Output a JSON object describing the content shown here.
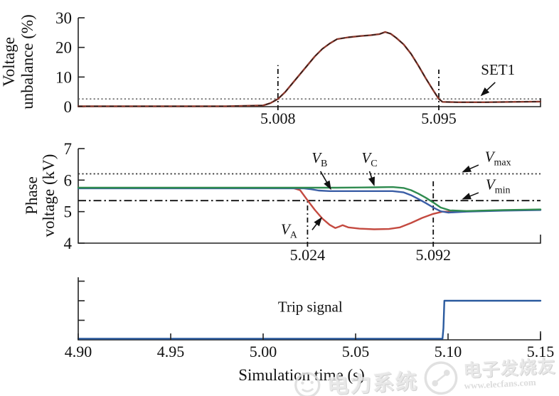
{
  "page": {
    "background": "#ffffff"
  },
  "xaxis": {
    "title": "Simulation time (s)",
    "xlim": [
      4.9,
      5.15
    ],
    "ticks": [
      {
        "v": 4.9,
        "label": "4.90"
      },
      {
        "v": 4.95,
        "label": "4.95"
      },
      {
        "v": 5.0,
        "label": "5.00"
      },
      {
        "v": 5.05,
        "label": "5.05"
      },
      {
        "v": 5.1,
        "label": "5.10"
      },
      {
        "v": 5.15,
        "label": "5.15"
      }
    ]
  },
  "watermark": {
    "left_text": "电力系统",
    "brand_text": "电子发烧友",
    "url": "www.elecfans.com"
  },
  "chart_data": [
    {
      "type": "line",
      "panel": "voltage-unbalance",
      "ylabel_lines": [
        "Voltage",
        "unbalance (%)"
      ],
      "ylim": [
        0,
        30
      ],
      "yticks": [
        {
          "v": 0,
          "label": "0"
        },
        {
          "v": 10,
          "label": "10"
        },
        {
          "v": 20,
          "label": "20"
        },
        {
          "v": 30,
          "label": "30"
        }
      ],
      "series": [
        {
          "name": "voltage-unbalance",
          "color": "#8b382c",
          "dash_overlay": true,
          "points": [
            [
              4.9,
              0.15
            ],
            [
              4.98,
              0.15
            ],
            [
              5.0,
              0.4
            ],
            [
              5.004,
              1.2
            ],
            [
              5.008,
              2.6
            ],
            [
              5.012,
              5.0
            ],
            [
              5.016,
              8.0
            ],
            [
              5.02,
              11.0
            ],
            [
              5.024,
              14.0
            ],
            [
              5.028,
              17.0
            ],
            [
              5.032,
              19.5
            ],
            [
              5.036,
              21.3
            ],
            [
              5.04,
              22.8
            ],
            [
              5.046,
              23.4
            ],
            [
              5.052,
              23.8
            ],
            [
              5.058,
              24.1
            ],
            [
              5.063,
              24.5
            ],
            [
              5.066,
              25.2
            ],
            [
              5.069,
              24.6
            ],
            [
              5.072,
              23.2
            ],
            [
              5.076,
              21.0
            ],
            [
              5.08,
              17.8
            ],
            [
              5.084,
              13.8
            ],
            [
              5.088,
              9.5
            ],
            [
              5.092,
              5.5
            ],
            [
              5.095,
              2.6
            ],
            [
              5.097,
              1.6
            ],
            [
              5.105,
              1.5
            ],
            [
              5.12,
              1.5
            ],
            [
              5.135,
              1.6
            ],
            [
              5.15,
              1.7
            ]
          ]
        }
      ],
      "thresholds": [
        {
          "name": "SET1",
          "value": 2.6,
          "style": "dotted",
          "color": "#666666"
        }
      ],
      "vlines": [
        {
          "x": 5.008,
          "y0": 0,
          "y1": 14.0,
          "label": "5.008"
        },
        {
          "x": 5.095,
          "y0": 0,
          "y1": 12.5,
          "label": "5.095"
        }
      ],
      "annotations": [
        {
          "label": "SET1",
          "x": 5.127,
          "y": 10.8,
          "arrow": [
            5.1255,
            8.2,
            5.118,
            3.8
          ]
        }
      ]
    },
    {
      "type": "line",
      "panel": "phase-voltage",
      "ylabel_lines": [
        "Phase",
        "voltage (kV)"
      ],
      "ylim": [
        4,
        7
      ],
      "yticks": [
        {
          "v": 4,
          "label": "4"
        },
        {
          "v": 5,
          "label": "5"
        },
        {
          "v": 6,
          "label": "6"
        },
        {
          "v": 7,
          "label": "7"
        }
      ],
      "series": [
        {
          "name": "phase-a-voltage",
          "color": "#c44a40",
          "points": [
            [
              4.9,
              5.75
            ],
            [
              5.016,
              5.75
            ],
            [
              5.02,
              5.68
            ],
            [
              5.024,
              5.36
            ],
            [
              5.028,
              5.05
            ],
            [
              5.032,
              4.78
            ],
            [
              5.036,
              4.58
            ],
            [
              5.039,
              4.48
            ],
            [
              5.041,
              4.52
            ],
            [
              5.043,
              4.57
            ],
            [
              5.046,
              4.5
            ],
            [
              5.052,
              4.46
            ],
            [
              5.06,
              4.44
            ],
            [
              5.068,
              4.45
            ],
            [
              5.074,
              4.5
            ],
            [
              5.08,
              4.64
            ],
            [
              5.086,
              4.8
            ],
            [
              5.092,
              4.93
            ],
            [
              5.097,
              5.0
            ],
            [
              5.102,
              5.0
            ],
            [
              5.12,
              5.03
            ],
            [
              5.15,
              5.06
            ]
          ]
        },
        {
          "name": "phase-b-voltage",
          "color": "#3b5ea6",
          "points": [
            [
              4.9,
              5.74
            ],
            [
              5.022,
              5.74
            ],
            [
              5.026,
              5.71
            ],
            [
              5.03,
              5.67
            ],
            [
              5.036,
              5.65
            ],
            [
              5.07,
              5.65
            ],
            [
              5.076,
              5.61
            ],
            [
              5.08,
              5.52
            ],
            [
              5.084,
              5.4
            ],
            [
              5.088,
              5.27
            ],
            [
              5.092,
              5.13
            ],
            [
              5.096,
              5.01
            ],
            [
              5.1,
              4.97
            ],
            [
              5.11,
              5.0
            ],
            [
              5.13,
              5.03
            ],
            [
              5.15,
              5.05
            ]
          ]
        },
        {
          "name": "phase-c-voltage",
          "color": "#2f8b4f",
          "points": [
            [
              4.9,
              5.76
            ],
            [
              5.04,
              5.76
            ],
            [
              5.06,
              5.77
            ],
            [
              5.07,
              5.78
            ],
            [
              5.076,
              5.75
            ],
            [
              5.08,
              5.68
            ],
            [
              5.084,
              5.57
            ],
            [
              5.088,
              5.44
            ],
            [
              5.092,
              5.29
            ],
            [
              5.096,
              5.13
            ],
            [
              5.101,
              5.04
            ],
            [
              5.11,
              5.02
            ],
            [
              5.13,
              5.05
            ],
            [
              5.15,
              5.07
            ]
          ]
        }
      ],
      "thresholds": [
        {
          "name": "V_max",
          "value": 6.2,
          "style": "dotted",
          "color": "#333333"
        },
        {
          "name": "V_min",
          "value": 5.35,
          "style": "dashdot",
          "color": "#111111"
        }
      ],
      "vlines": [
        {
          "x": 5.024,
          "y0": 4.0,
          "y1": 5.42,
          "label": "5.024"
        },
        {
          "x": 5.092,
          "y0": 4.0,
          "y1": 6.05,
          "label": "5.092"
        }
      ],
      "annotations": [
        {
          "label": "V_B",
          "x": 5.0305,
          "y": 6.55,
          "arrow": [
            5.031,
            6.28,
            5.0365,
            5.72
          ]
        },
        {
          "label": "V_C",
          "x": 5.0575,
          "y": 6.55,
          "arrow": [
            5.0575,
            6.28,
            5.06,
            5.84
          ]
        },
        {
          "label": "V_A",
          "x": 5.014,
          "y": 4.28,
          "arrow": [
            5.0265,
            4.42,
            5.0315,
            4.8
          ]
        },
        {
          "label": "V_max",
          "x": 5.127,
          "y": 6.58,
          "arrow": [
            5.1165,
            6.48,
            5.108,
            6.26
          ]
        },
        {
          "label": "V_min",
          "x": 5.127,
          "y": 5.7,
          "arrow": [
            5.1165,
            5.6,
            5.108,
            5.4
          ]
        }
      ]
    },
    {
      "type": "line",
      "panel": "trip-signal",
      "ylabel_lines": [],
      "ylim": [
        0,
        1.6
      ],
      "yticks": [
        {
          "v": 0.5,
          "label": ""
        },
        {
          "v": 1.0,
          "label": ""
        },
        {
          "v": 1.5,
          "label": ""
        }
      ],
      "series": [
        {
          "name": "trip-signal",
          "color": "#2a5a9e",
          "points": [
            [
              4.9,
              0.03
            ],
            [
              5.097,
              0.03
            ],
            [
              5.0975,
              0.3
            ],
            [
              5.098,
              1.0
            ],
            [
              5.15,
              1.0
            ]
          ]
        }
      ],
      "thresholds": [],
      "vlines": [],
      "annotations": [
        {
          "label": "Trip signal",
          "x": 5.0255,
          "y": 0.72
        }
      ]
    }
  ]
}
